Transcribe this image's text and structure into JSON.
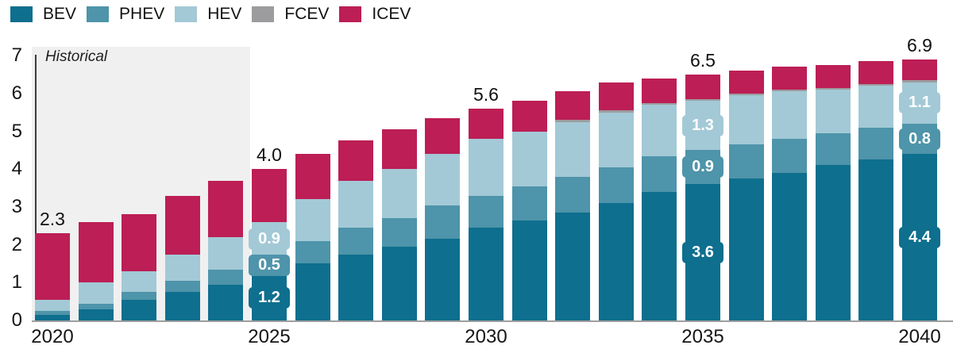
{
  "legend": {
    "items": [
      {
        "label": "BEV",
        "color": "#0e6f8e"
      },
      {
        "label": "PHEV",
        "color": "#4e94aa"
      },
      {
        "label": "HEV",
        "color": "#a3c9d6"
      },
      {
        "label": "FCEV",
        "color": "#9c9c9e"
      },
      {
        "label": "ICEV",
        "color": "#bc1e55"
      }
    ]
  },
  "chart_data": {
    "type": "bar",
    "stacked": true,
    "title": "",
    "xlabel": "",
    "ylabel": "",
    "grid": false,
    "legend_position": "top-left",
    "ylim": [
      0,
      7
    ],
    "yticks": [
      0,
      1,
      2,
      3,
      4,
      5,
      6,
      7
    ],
    "x": [
      2020,
      2021,
      2022,
      2023,
      2024,
      2025,
      2026,
      2027,
      2028,
      2029,
      2030,
      2031,
      2032,
      2033,
      2034,
      2035,
      2036,
      2037,
      2038,
      2039,
      2040
    ],
    "x_tick_labels": [
      {
        "index": 0,
        "label": "2020"
      },
      {
        "index": 5,
        "label": "2025"
      },
      {
        "index": 10,
        "label": "2030"
      },
      {
        "index": 15,
        "label": "2035"
      },
      {
        "index": 20,
        "label": "2040"
      }
    ],
    "series": [
      {
        "name": "BEV",
        "color": "#0e6f8e",
        "values": [
          0.15,
          0.3,
          0.55,
          0.75,
          0.95,
          1.2,
          1.5,
          1.75,
          1.95,
          2.15,
          2.45,
          2.65,
          2.85,
          3.1,
          3.4,
          3.6,
          3.75,
          3.9,
          4.1,
          4.25,
          4.4
        ]
      },
      {
        "name": "PHEV",
        "color": "#4e94aa",
        "values": [
          0.1,
          0.15,
          0.2,
          0.3,
          0.4,
          0.5,
          0.6,
          0.7,
          0.75,
          0.9,
          0.85,
          0.9,
          0.95,
          0.95,
          0.95,
          0.9,
          0.9,
          0.9,
          0.85,
          0.85,
          0.8
        ]
      },
      {
        "name": "HEV",
        "color": "#a3c9d6",
        "values": [
          0.3,
          0.55,
          0.55,
          0.7,
          0.85,
          0.9,
          1.1,
          1.25,
          1.3,
          1.35,
          1.5,
          1.45,
          1.45,
          1.45,
          1.35,
          1.3,
          1.3,
          1.25,
          1.15,
          1.1,
          1.1
        ]
      },
      {
        "name": "FCEV",
        "color": "#9c9c9e",
        "values": [
          0,
          0,
          0,
          0,
          0,
          0,
          0,
          0,
          0,
          0,
          0,
          0,
          0.05,
          0.05,
          0.05,
          0.05,
          0.05,
          0.05,
          0.05,
          0.05,
          0.05
        ]
      },
      {
        "name": "ICEV",
        "color": "#bc1e55",
        "values": [
          1.75,
          1.6,
          1.5,
          1.55,
          1.5,
          1.4,
          1.2,
          1.05,
          1.05,
          0.95,
          0.8,
          0.8,
          0.75,
          0.75,
          0.65,
          0.65,
          0.6,
          0.6,
          0.6,
          0.6,
          0.55
        ]
      }
    ],
    "totals_labeled": [
      {
        "index": 0,
        "label": "2.3"
      },
      {
        "index": 5,
        "label": "4.0"
      },
      {
        "index": 10,
        "label": "5.6"
      },
      {
        "index": 15,
        "label": "6.5"
      },
      {
        "index": 20,
        "label": "6.9"
      }
    ],
    "segment_labels": [
      {
        "index": 5,
        "series": "BEV",
        "label": "1.2"
      },
      {
        "index": 5,
        "series": "PHEV",
        "label": "0.5"
      },
      {
        "index": 5,
        "series": "HEV",
        "label": "0.9"
      },
      {
        "index": 15,
        "series": "BEV",
        "label": "3.6"
      },
      {
        "index": 15,
        "series": "PHEV",
        "label": "0.9"
      },
      {
        "index": 15,
        "series": "HEV",
        "label": "1.3"
      },
      {
        "index": 20,
        "series": "BEV",
        "label": "4.4"
      },
      {
        "index": 20,
        "series": "PHEV",
        "label": "0.8"
      },
      {
        "index": 20,
        "series": "HEV",
        "label": "1.1"
      }
    ],
    "historical_region": {
      "label": "Historical",
      "x_start_index": 0,
      "x_end_index": 4
    }
  }
}
